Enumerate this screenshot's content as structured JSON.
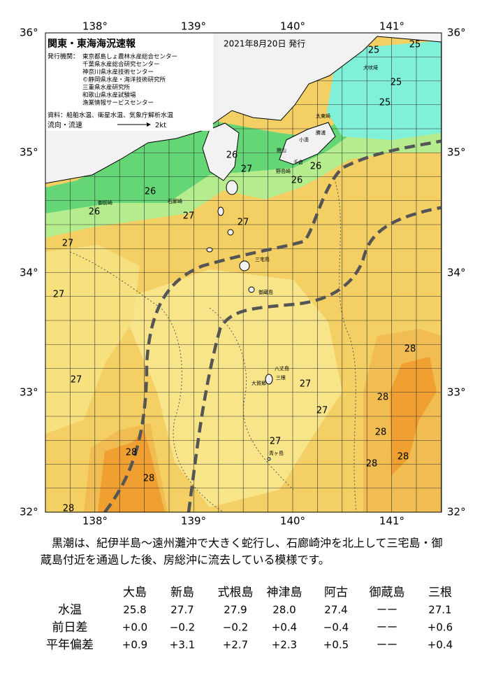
{
  "header": {
    "title": "関東・東海海況速報",
    "date": "2021年8月20日 発行",
    "agencies_label": "発行機関：",
    "agencies": [
      "東京都島しょ農林水産総合センター",
      "千葉県水産総合研究センター",
      "神奈川県水産技術センター",
      "©静岡県水産・海洋技術研究所",
      "三重県水産研究所",
      "和歌山県水産試験場",
      "漁業情報サービスセンター"
    ],
    "source": "資料：船舶水温、衛星水温、気象庁解析水温",
    "current_label": "流向・流速",
    "speed_label": "2kt"
  },
  "map": {
    "lon_labels": [
      "138°",
      "139°",
      "140°",
      "141°"
    ],
    "lat_labels": [
      "36°",
      "35°",
      "34°",
      "33°",
      "32°"
    ],
    "isotherm_labels": [
      "25",
      "25",
      "25",
      "25",
      "26",
      "26",
      "26",
      "26",
      "26",
      "27",
      "27",
      "27",
      "27",
      "27",
      "27",
      "27",
      "27",
      "27",
      "28",
      "28",
      "28",
      "28",
      "28",
      "28",
      "28",
      "28"
    ],
    "place_names": [
      "犬吠埼",
      "太東崎",
      "勝浦",
      "小湊",
      "館山",
      "野島崎",
      "千倉",
      "三宅島",
      "御蔵島",
      "八丈島",
      "大賀郷",
      "三根",
      "青ヶ島",
      "石廊崎",
      "御前崎"
    ]
  },
  "description": [
    "　黒潮は、紀伊半島～遠州灘沖で大きく蛇行し、石廊崎沖を北上して三宅島・御",
    "蔵島付近を通過した後、房総沖に流去している模様です。"
  ],
  "table": {
    "columns": [
      "大島",
      "新島",
      "式根島",
      "神津島",
      "阿古",
      "御蔵島",
      "三根"
    ],
    "rows": [
      {
        "label": "水温",
        "cells": [
          "25.8",
          "27.7",
          "27.9",
          "28.0",
          "27.4",
          "ーー",
          "27.1"
        ]
      },
      {
        "label": "前日差",
        "cells": [
          "+0.0",
          "−0.2",
          "−0.2",
          "+0.4",
          "−0.4",
          "ーー",
          "+0.6"
        ]
      },
      {
        "label": "平年偏差",
        "cells": [
          "+0.9",
          "+3.1",
          "+2.7",
          "+2.3",
          "+0.5",
          "ーー",
          "+0.4"
        ]
      }
    ]
  }
}
